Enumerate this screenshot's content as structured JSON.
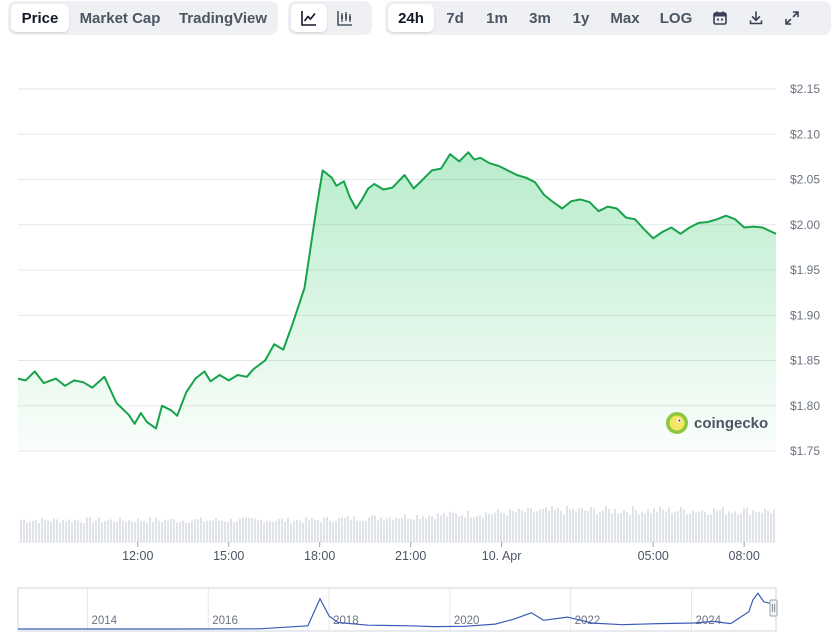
{
  "toolbar": {
    "view_tabs": [
      "Price",
      "Market Cap",
      "TradingView"
    ],
    "active_view": "Price",
    "chart_type_icons": [
      "line-chart-icon",
      "candlestick-chart-icon"
    ],
    "range_tabs": [
      "24h",
      "7d",
      "1m",
      "3m",
      "1y",
      "Max",
      "LOG"
    ],
    "active_range": "24h",
    "action_icons": [
      "calendar-icon",
      "download-icon",
      "fullscreen-icon"
    ]
  },
  "brand": {
    "name": "coingecko"
  },
  "colors": {
    "line": "#16a34a",
    "fill": "#22c55e",
    "grid": "#e5e7eb",
    "volume": "#d1d5db",
    "navigator_line": "#3b5bb8"
  },
  "chart_data": {
    "type": "area",
    "title": "",
    "xlabel": "",
    "ylabel": "",
    "ylim": [
      1.75,
      2.15
    ],
    "y_ticks": [
      "$1.75",
      "$1.80",
      "$1.85",
      "$1.90",
      "$1.95",
      "$2.00",
      "$2.05",
      "$2.10",
      "$2.15"
    ],
    "y_tick_values": [
      1.75,
      1.8,
      1.85,
      1.9,
      1.95,
      2.0,
      2.05,
      2.1,
      2.15
    ],
    "x_ticks": [
      "12:00",
      "15:00",
      "18:00",
      "21:00",
      "10. Apr",
      "05:00",
      "08:00"
    ],
    "x_tick_hours": [
      12,
      15,
      18,
      21,
      24,
      29,
      32
    ],
    "xlim_hours": [
      8.05,
      33.05
    ],
    "series": [
      {
        "x_hours": [
          8.05,
          8.3,
          8.6,
          8.9,
          9.3,
          9.6,
          9.9,
          10.2,
          10.5,
          10.9,
          11.3,
          11.7,
          11.9,
          12.1,
          12.3,
          12.6,
          12.8,
          13.1,
          13.3,
          13.6,
          13.9,
          14.2,
          14.4,
          14.7,
          15.0,
          15.3,
          15.6,
          15.8,
          16.2,
          16.5,
          16.8,
          17.1,
          17.5,
          17.9,
          18.1,
          18.4,
          18.55,
          18.8,
          19.0,
          19.2,
          19.4,
          19.6,
          19.8,
          20.1,
          20.4,
          20.8,
          21.1,
          21.4,
          21.7,
          22.0,
          22.3,
          22.6,
          22.9,
          23.1,
          23.3,
          23.6,
          23.9,
          24.2,
          24.5,
          24.8,
          25.1,
          25.4,
          25.7,
          26.0,
          26.3,
          26.6,
          26.9,
          27.2,
          27.5,
          27.8,
          28.1,
          28.4,
          28.7,
          29.0,
          29.3,
          29.6,
          29.9,
          30.2,
          30.5,
          30.8,
          31.1,
          31.4,
          31.7,
          32.0,
          32.3,
          32.6,
          33.05
        ],
        "y": [
          1.83,
          1.828,
          1.838,
          1.825,
          1.83,
          1.822,
          1.828,
          1.826,
          1.82,
          1.832,
          1.803,
          1.79,
          1.78,
          1.792,
          1.782,
          1.775,
          1.8,
          1.795,
          1.789,
          1.815,
          1.83,
          1.838,
          1.827,
          1.834,
          1.828,
          1.834,
          1.832,
          1.84,
          1.85,
          1.868,
          1.862,
          1.89,
          1.93,
          2.02,
          2.06,
          2.052,
          2.043,
          2.048,
          2.03,
          2.018,
          2.028,
          2.04,
          2.045,
          2.039,
          2.041,
          2.055,
          2.04,
          2.05,
          2.06,
          2.062,
          2.078,
          2.07,
          2.08,
          2.072,
          2.074,
          2.068,
          2.065,
          2.06,
          2.055,
          2.052,
          2.047,
          2.033,
          2.025,
          2.018,
          2.026,
          2.028,
          2.025,
          2.015,
          2.02,
          2.018,
          2.008,
          2.006,
          1.995,
          1.985,
          1.992,
          1.997,
          1.99,
          1.997,
          2.002,
          2.003,
          2.006,
          2.01,
          2.006,
          1.997,
          1.998,
          1.997,
          1.99
        ]
      }
    ],
    "volume_note": "volume bars shown under price",
    "navigator": {
      "x_ticks": [
        "2014",
        "2016",
        "2018",
        "2020",
        "2022",
        "2024"
      ],
      "x_tick_years": [
        2014,
        2016,
        2018,
        2020,
        2022,
        2024
      ],
      "xlim_years": [
        2012.8,
        2025.35
      ],
      "x_years": [
        2012.8,
        2015.5,
        2016.8,
        2017.6,
        2017.8,
        2017.95,
        2018.1,
        2018.6,
        2019.3,
        2019.7,
        2020.2,
        2020.7,
        2021.0,
        2021.3,
        2021.5,
        2021.9,
        2022.3,
        2022.8,
        2023.4,
        2024.0,
        2024.3,
        2024.6,
        2024.9,
        2024.97,
        2025.05,
        2025.15,
        2025.3
      ],
      "values": [
        0.0,
        0.0,
        0.02,
        0.3,
        2.8,
        1.2,
        0.6,
        0.35,
        0.3,
        0.22,
        0.25,
        0.45,
        0.9,
        1.5,
        0.8,
        1.1,
        0.55,
        0.4,
        0.5,
        0.55,
        0.7,
        0.5,
        1.6,
        2.7,
        3.3,
        2.5,
        2.3
      ],
      "ylim": [
        0,
        3.6
      ]
    }
  }
}
